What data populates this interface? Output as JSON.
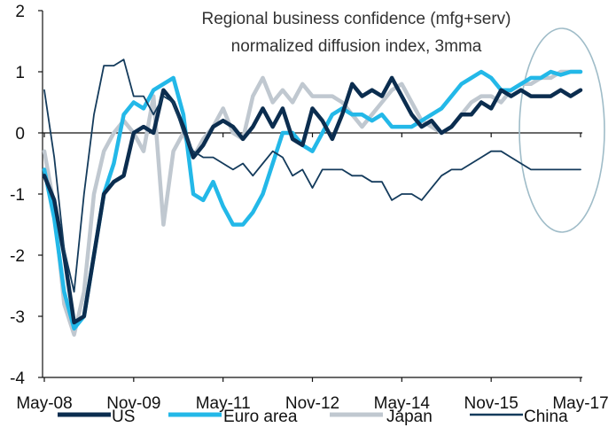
{
  "chart_data": {
    "type": "line",
    "title": [
      "Regional business confidence (mfg+serv)",
      "normalized diffusion index, 3mma"
    ],
    "xlabel": "",
    "ylabel": "",
    "x_ticks": [
      "May-08",
      "Nov-09",
      "May-11",
      "Nov-12",
      "May-14",
      "Nov-15",
      "May-17"
    ],
    "y_ticks": [
      "2",
      "1",
      "0",
      "-1",
      "-2",
      "-3",
      "-4"
    ],
    "ylim": [
      -4,
      2
    ],
    "highlight": "ellipse around most recent period (late 2016 - May 2017)",
    "colors": {
      "US": "#0b2d4f",
      "Euro area": "#23b8e8",
      "Japan": "#c0c8d0",
      "China": "#143b5c",
      "ellipse": "#9fbcc8",
      "axis": "#111111"
    },
    "series": [
      {
        "name": "US",
        "x": [
          0,
          2,
          4,
          6,
          8,
          10,
          12,
          14,
          16,
          18,
          20,
          22,
          24,
          26,
          28,
          30,
          32,
          34,
          36,
          38,
          40,
          42,
          44,
          46,
          48,
          50,
          52,
          54,
          56,
          58,
          60,
          62,
          64,
          66,
          68,
          70,
          72,
          74,
          76,
          78,
          80,
          82,
          84,
          86,
          88,
          90,
          92,
          94,
          96,
          98,
          100,
          102,
          104,
          106,
          108
        ],
        "values": [
          -0.7,
          -1.1,
          -2.0,
          -3.1,
          -3.0,
          -2.0,
          -1.0,
          -0.8,
          -0.7,
          0.0,
          0.1,
          0.0,
          0.7,
          0.5,
          0.1,
          -0.4,
          -0.2,
          0.1,
          0.2,
          0.1,
          -0.1,
          0.1,
          0.4,
          0.1,
          0.4,
          -0.1,
          -0.2,
          0.4,
          0.2,
          -0.1,
          0.3,
          0.8,
          0.6,
          0.7,
          0.6,
          0.9,
          0.6,
          0.3,
          0.1,
          0.2,
          0.0,
          0.1,
          0.3,
          0.3,
          0.5,
          0.4,
          0.7,
          0.6,
          0.7,
          0.6,
          0.6,
          0.6,
          0.7,
          0.6,
          0.7
        ]
      },
      {
        "name": "Euro area",
        "x": [
          0,
          2,
          4,
          6,
          8,
          10,
          12,
          14,
          16,
          18,
          20,
          22,
          24,
          26,
          28,
          30,
          32,
          34,
          36,
          38,
          40,
          42,
          44,
          46,
          48,
          50,
          52,
          54,
          56,
          58,
          60,
          62,
          64,
          66,
          68,
          70,
          72,
          74,
          76,
          78,
          80,
          82,
          84,
          86,
          88,
          90,
          92,
          94,
          96,
          98,
          100,
          102,
          104,
          106,
          108
        ],
        "values": [
          -0.6,
          -1.4,
          -2.6,
          -3.2,
          -3.0,
          -2.0,
          -1.0,
          -0.5,
          0.3,
          0.5,
          0.4,
          0.7,
          0.8,
          0.9,
          0.3,
          -1.0,
          -1.1,
          -0.8,
          -1.2,
          -1.5,
          -1.5,
          -1.3,
          -1.0,
          -0.5,
          0.0,
          0.0,
          -0.2,
          -0.3,
          0.0,
          0.3,
          0.4,
          0.3,
          0.3,
          0.2,
          0.3,
          0.1,
          0.1,
          0.1,
          0.2,
          0.3,
          0.4,
          0.6,
          0.8,
          0.9,
          1.0,
          0.9,
          0.7,
          0.7,
          0.8,
          0.9,
          0.9,
          1.0,
          0.95,
          1.0,
          1.0
        ]
      },
      {
        "name": "Japan",
        "x": [
          0,
          2,
          4,
          6,
          8,
          10,
          12,
          14,
          16,
          18,
          20,
          22,
          24,
          26,
          28,
          30,
          32,
          34,
          36,
          38,
          40,
          42,
          44,
          46,
          48,
          50,
          52,
          54,
          56,
          58,
          60,
          62,
          64,
          66,
          68,
          70,
          72,
          74,
          76,
          78,
          80,
          82,
          84,
          86,
          88,
          90,
          92,
          94,
          96,
          98,
          100,
          102,
          104,
          106,
          108
        ],
        "values": [
          -0.3,
          -1.2,
          -2.8,
          -3.3,
          -2.6,
          -1.0,
          -0.3,
          0.0,
          0.2,
          0.0,
          -0.3,
          0.6,
          -1.5,
          -0.3,
          0.0,
          -0.4,
          -0.1,
          0.1,
          0.4,
          0.0,
          -0.1,
          0.6,
          0.9,
          0.5,
          0.7,
          0.5,
          0.8,
          0.6,
          0.6,
          0.6,
          0.5,
          0.3,
          0.1,
          0.3,
          0.5,
          0.7,
          0.8,
          0.5,
          0.2,
          0.1,
          0.0,
          0.1,
          0.3,
          0.5,
          0.6,
          0.6,
          0.5,
          0.7,
          0.8,
          0.8,
          0.9,
          0.9,
          1.0,
          1.0,
          1.0
        ]
      },
      {
        "name": "China",
        "x": [
          0,
          2,
          4,
          6,
          8,
          10,
          12,
          14,
          16,
          18,
          20,
          22,
          24,
          26,
          28,
          30,
          32,
          34,
          36,
          38,
          40,
          42,
          44,
          46,
          48,
          50,
          52,
          54,
          56,
          58,
          60,
          62,
          64,
          66,
          68,
          70,
          72,
          74,
          76,
          78,
          80,
          82,
          84,
          86,
          88,
          90,
          92,
          94,
          96,
          98,
          100,
          102,
          104,
          106,
          108
        ],
        "values": [
          0.7,
          -0.4,
          -1.9,
          -2.6,
          -1.0,
          0.3,
          1.1,
          1.1,
          1.2,
          0.6,
          0.6,
          0.3,
          0.6,
          0.5,
          0.0,
          -0.3,
          -0.4,
          -0.4,
          -0.5,
          -0.6,
          -0.5,
          -0.7,
          -0.5,
          -0.3,
          -0.4,
          -0.7,
          -0.6,
          -0.9,
          -0.6,
          -0.6,
          -0.6,
          -0.7,
          -0.7,
          -0.8,
          -0.8,
          -1.1,
          -1.0,
          -1.0,
          -1.1,
          -0.9,
          -0.7,
          -0.6,
          -0.6,
          -0.5,
          -0.4,
          -0.3,
          -0.3,
          -0.4,
          -0.5,
          -0.6,
          -0.6,
          -0.6,
          -0.6,
          -0.6,
          -0.6
        ]
      }
    ]
  },
  "legend": {
    "items": [
      {
        "label": "US",
        "color": "#0b2d4f"
      },
      {
        "label": "Euro area",
        "color": "#23b8e8"
      },
      {
        "label": "Japan",
        "color": "#c0c8d0"
      },
      {
        "label": "China",
        "color": "#143b5c"
      }
    ]
  }
}
